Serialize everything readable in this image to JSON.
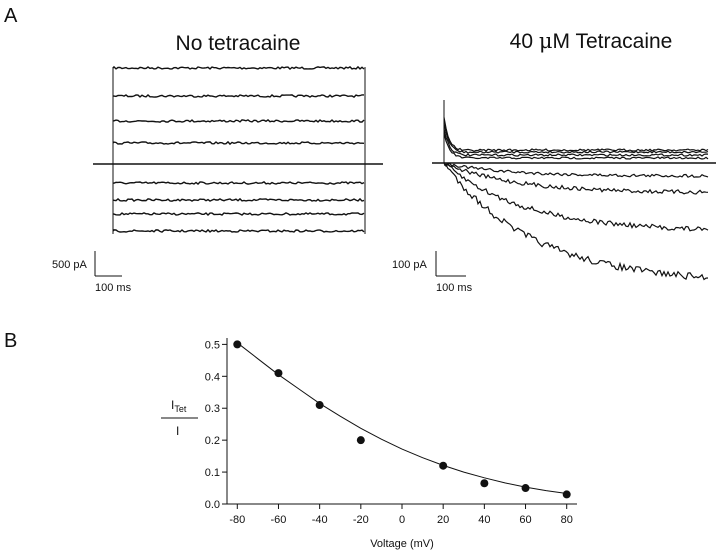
{
  "panel_a": {
    "letter": "A",
    "left": {
      "title": "No tetracaine",
      "scale_current": "500 pA",
      "scale_time": "100 ms"
    },
    "right": {
      "title_prefix": "40 ",
      "title_mu": "μ",
      "title_suffix": "M Tetracaine",
      "scale_current": "100 pA",
      "scale_time": "100 ms"
    }
  },
  "panel_b": {
    "letter": "B",
    "ylabel_main": "I",
    "ylabel_sub": "Tet",
    "ylabel_den": "I"
  },
  "chart_data": {
    "type": "scatter",
    "title": "",
    "xlabel": "Voltage (mV)",
    "xlim": [
      -85,
      85
    ],
    "ylim": [
      0.0,
      0.52
    ],
    "x_ticks": [
      -80,
      -60,
      -40,
      -20,
      0,
      20,
      40,
      60,
      80
    ],
    "y_ticks": [
      0.0,
      0.1,
      0.2,
      0.3,
      0.4,
      0.5
    ],
    "x_tick_labels": [
      "-80",
      "-60",
      "-40",
      "-20",
      "0",
      "20",
      "40",
      "60",
      "80"
    ],
    "y_tick_labels": [
      "0.0",
      "0.1",
      "0.2",
      "0.3",
      "0.4",
      "0.5"
    ],
    "grid": false,
    "points": [
      {
        "x": -80,
        "y": 0.5
      },
      {
        "x": -60,
        "y": 0.41
      },
      {
        "x": -40,
        "y": 0.31
      },
      {
        "x": -20,
        "y": 0.2
      },
      {
        "x": 20,
        "y": 0.12
      },
      {
        "x": 40,
        "y": 0.065
      },
      {
        "x": 60,
        "y": 0.05
      },
      {
        "x": 80,
        "y": 0.03
      }
    ],
    "fit_curve": [
      {
        "x": -80,
        "y": 0.505
      },
      {
        "x": -70,
        "y": 0.455
      },
      {
        "x": -60,
        "y": 0.405
      },
      {
        "x": -50,
        "y": 0.36
      },
      {
        "x": -40,
        "y": 0.315
      },
      {
        "x": -30,
        "y": 0.275
      },
      {
        "x": -20,
        "y": 0.237
      },
      {
        "x": -10,
        "y": 0.203
      },
      {
        "x": 0,
        "y": 0.172
      },
      {
        "x": 10,
        "y": 0.145
      },
      {
        "x": 20,
        "y": 0.121
      },
      {
        "x": 30,
        "y": 0.1
      },
      {
        "x": 40,
        "y": 0.082
      },
      {
        "x": 50,
        "y": 0.066
      },
      {
        "x": 60,
        "y": 0.053
      },
      {
        "x": 70,
        "y": 0.042
      },
      {
        "x": 80,
        "y": 0.033
      }
    ]
  }
}
